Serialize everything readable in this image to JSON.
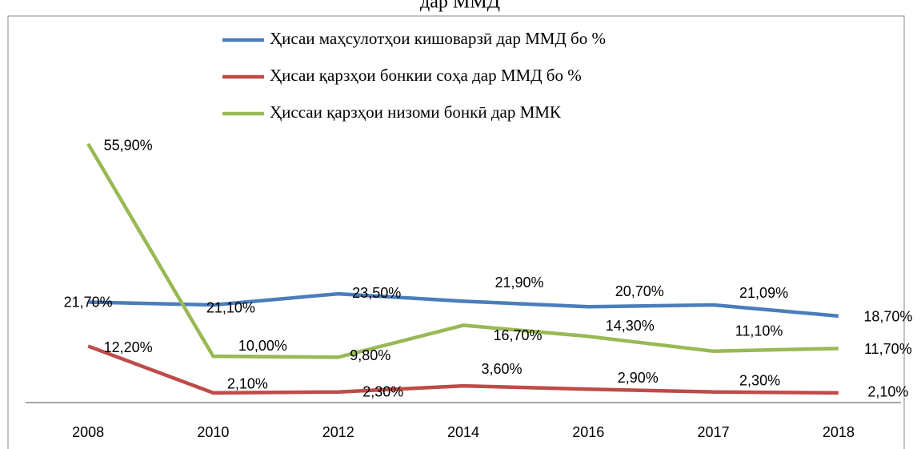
{
  "chart_data": {
    "type": "line",
    "title": "дар ММД",
    "categories": [
      "2008",
      "2010",
      "2012",
      "2014",
      "2016",
      "2017",
      "2018"
    ],
    "series": [
      {
        "name": "Ҳисаи маҳсулотҳои кишоварзӣ дар ММД бо %",
        "color": "#4a7ebb",
        "values": [
          21.7,
          21.1,
          23.5,
          21.9,
          20.7,
          21.09,
          18.7
        ],
        "value_labels": [
          "21,70%",
          "21,10%",
          "23,50%",
          "21,90%",
          "20,70%",
          "21,09%",
          "18,70%"
        ]
      },
      {
        "name": "Ҳисаи қарзҳои бонкии соҳа дар  ММД бо %",
        "color": "#be4b48",
        "values": [
          12.2,
          2.1,
          2.3,
          3.6,
          2.9,
          2.3,
          2.1
        ],
        "value_labels": [
          "12,20%",
          "2,10%",
          "2,30%",
          "3,60%",
          "2,90%",
          "2,30%",
          "2,10%"
        ]
      },
      {
        "name": "Ҳиссаи қарзҳои низоми бонкӣ дар ММК",
        "color": "#98b954",
        "values": [
          55.9,
          10.0,
          9.8,
          16.7,
          14.3,
          11.1,
          11.7
        ],
        "value_labels": [
          "55,90%",
          "10,00%",
          "9,80%",
          "16,70%",
          "14,30%",
          "11,10%",
          "11,70%"
        ]
      }
    ],
    "ylim": [
      0,
      83
    ]
  }
}
